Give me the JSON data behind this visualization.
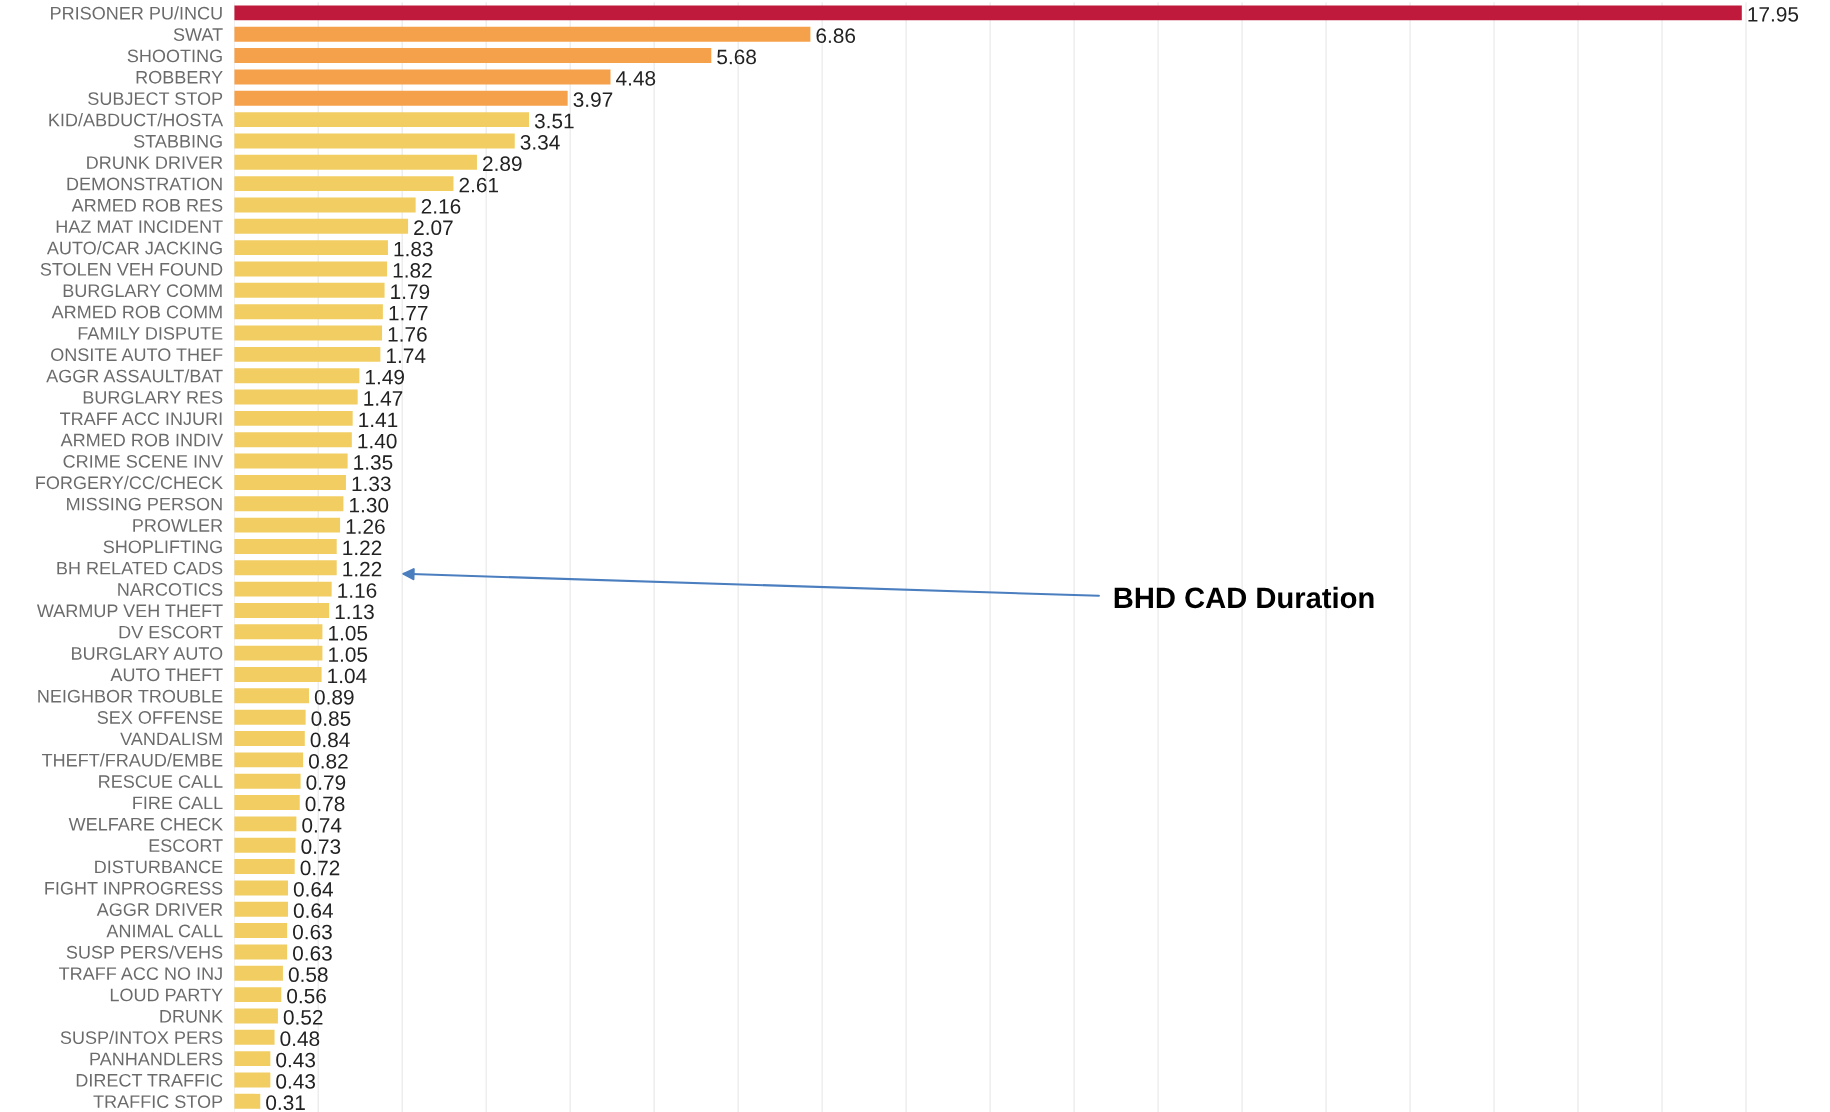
{
  "chart_data": {
    "type": "bar",
    "orientation": "horizontal",
    "categories": [
      "PRISONER PU/INCU",
      "SWAT",
      "SHOOTING",
      "ROBBERY",
      "SUBJECT STOP",
      "KID/ABDUCT/HOSTA",
      "STABBING",
      "DRUNK DRIVER",
      "DEMONSTRATION",
      "ARMED ROB RES",
      "HAZ MAT INCIDENT",
      "AUTO/CAR JACKING",
      "STOLEN VEH FOUND",
      "BURGLARY COMM",
      "ARMED ROB COMM",
      "FAMILY DISPUTE",
      "ONSITE AUTO THEF",
      "AGGR ASSAULT/BAT",
      "BURGLARY RES",
      "TRAFF ACC INJURI",
      "ARMED ROB INDIV",
      "CRIME SCENE INV",
      "FORGERY/CC/CHECK",
      "MISSING PERSON",
      "PROWLER",
      "SHOPLIFTING",
      "BH RELATED CADS",
      "NARCOTICS",
      "WARMUP VEH THEFT",
      "DV ESCORT",
      "BURGLARY AUTO",
      "AUTO THEFT",
      "NEIGHBOR TROUBLE",
      "SEX OFFENSE",
      "VANDALISM",
      "THEFT/FRAUD/EMBE",
      "RESCUE CALL",
      "FIRE CALL",
      "WELFARE CHECK",
      "ESCORT",
      "DISTURBANCE",
      "FIGHT INPROGRESS",
      "AGGR DRIVER",
      "ANIMAL CALL",
      "SUSP PERS/VEHS",
      "TRAFF ACC NO INJ",
      "LOUD PARTY",
      "DRUNK",
      "SUSP/INTOX PERS",
      "PANHANDLERS",
      "DIRECT TRAFFIC",
      "TRAFFIC STOP"
    ],
    "values": [
      17.95,
      6.86,
      5.68,
      4.48,
      3.97,
      3.51,
      3.34,
      2.89,
      2.61,
      2.16,
      2.07,
      1.83,
      1.82,
      1.79,
      1.77,
      1.76,
      1.74,
      1.49,
      1.47,
      1.41,
      1.4,
      1.35,
      1.33,
      1.3,
      1.26,
      1.22,
      1.22,
      1.16,
      1.13,
      1.05,
      1.05,
      1.04,
      0.89,
      0.85,
      0.84,
      0.82,
      0.79,
      0.78,
      0.74,
      0.73,
      0.72,
      0.64,
      0.64,
      0.63,
      0.63,
      0.58,
      0.56,
      0.52,
      0.48,
      0.43,
      0.43,
      0.31
    ],
    "value_labels": [
      "17.95",
      "6.86",
      "5.68",
      "4.48",
      "3.97",
      "3.51",
      "3.34",
      "2.89",
      "2.61",
      "2.16",
      "2.07",
      "1.83",
      "1.82",
      "1.79",
      "1.77",
      "1.76",
      "1.74",
      "1.49",
      "1.47",
      "1.41",
      "1.40",
      "1.35",
      "1.33",
      "1.30",
      "1.26",
      "1.22",
      "1.22",
      "1.16",
      "1.13",
      "1.05",
      "1.05",
      "1.04",
      "0.89",
      "0.85",
      "0.84",
      "0.82",
      "0.79",
      "0.78",
      "0.74",
      "0.73",
      "0.72",
      "0.64",
      "0.64",
      "0.63",
      "0.63",
      "0.58",
      "0.56",
      "0.52",
      "0.48",
      "0.43",
      "0.43",
      "0.31"
    ],
    "colors": [
      "#bf1a3c",
      "#f5a04b",
      "#f5a04b",
      "#f5a04b",
      "#f5a04b",
      "#f2ce62",
      "#f2ce62",
      "#f2ce62",
      "#f2ce62",
      "#f2ce62",
      "#f2ce62",
      "#f2ce62",
      "#f2ce62",
      "#f2ce62",
      "#f2ce62",
      "#f2ce62",
      "#f2ce62",
      "#f2ce62",
      "#f2ce62",
      "#f2ce62",
      "#f2ce62",
      "#f2ce62",
      "#f2ce62",
      "#f2ce62",
      "#f2ce62",
      "#f2ce62",
      "#f2ce62",
      "#f2ce62",
      "#f2ce62",
      "#f2ce62",
      "#f2ce62",
      "#f2ce62",
      "#f2ce62",
      "#f2ce62",
      "#f2ce62",
      "#f2ce62",
      "#f2ce62",
      "#f2ce62",
      "#f2ce62",
      "#f2ce62",
      "#f2ce62",
      "#f2ce62",
      "#f2ce62",
      "#f2ce62",
      "#f2ce62",
      "#f2ce62",
      "#f2ce62",
      "#f2ce62",
      "#f2ce62",
      "#f2ce62",
      "#f2ce62",
      "#f2ce62"
    ],
    "xticks": [
      {
        "value": 0,
        "label": null
      },
      {
        "value": 1,
        "label": null
      },
      {
        "value": 2,
        "label": null
      },
      {
        "value": 3,
        "label": null
      },
      {
        "value": 4,
        "label": null
      },
      {
        "value": 5,
        "label": null
      },
      {
        "value": 6,
        "label": null
      },
      {
        "value": 7,
        "label": null
      },
      {
        "value": 8,
        "label": null
      },
      {
        "value": 9,
        "label": null
      },
      {
        "value": 10,
        "label": null
      },
      {
        "value": 11,
        "label": null
      },
      {
        "value": 12,
        "label": null
      },
      {
        "value": 13,
        "label": null
      },
      {
        "value": 14,
        "label": null
      },
      {
        "value": 15,
        "label": null
      },
      {
        "value": 16,
        "label": null
      },
      {
        "value": 17,
        "label": null
      },
      {
        "value": 18,
        "label": null
      }
    ],
    "grid": "x",
    "tick_labels": "y",
    "legend": false,
    "annotations": [
      "BHD CAD Duration"
    ]
  }
}
